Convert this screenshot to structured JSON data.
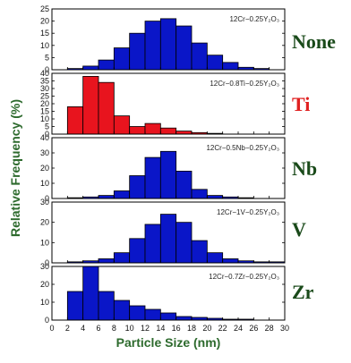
{
  "chart_data": {
    "type": "bar",
    "xlabel": "Particle Size (nm)",
    "ylabel": "Relative Frequency (%)",
    "xlim": [
      0,
      30
    ],
    "x_ticks": [
      "0",
      "2",
      "4",
      "6",
      "8",
      "10",
      "12",
      "14",
      "16",
      "18",
      "20",
      "22",
      "24",
      "26",
      "28",
      "30"
    ],
    "bin_width": 2,
    "bin_starts": [
      0,
      2,
      4,
      6,
      8,
      10,
      12,
      14,
      16,
      18,
      20,
      22,
      24,
      26,
      28
    ],
    "grid": false,
    "legend": "none",
    "panels": [
      {
        "label": "12Cr−0.25Y₂O₃",
        "side_label": "None",
        "color": "#0a16c8",
        "side_color": "#1a4a1a",
        "ylim": [
          0,
          25
        ],
        "y_ticks": [
          "0",
          "5",
          "10",
          "15",
          "20",
          "25"
        ],
        "values": [
          0,
          0.5,
          1.5,
          4,
          9,
          15,
          20,
          21,
          18,
          11,
          6,
          3,
          1,
          0.5,
          0
        ]
      },
      {
        "label": "12Cr−0.8Ti−0.25Y₂O₃",
        "side_label": "Ti",
        "color": "#e8141e",
        "side_color": "#e02020",
        "ylim": [
          0,
          40
        ],
        "y_ticks": [
          "0",
          "5",
          "10",
          "15",
          "20",
          "25",
          "30",
          "35",
          "40"
        ],
        "values": [
          0,
          18,
          38,
          34,
          12,
          5,
          7,
          4,
          2,
          1,
          0.5,
          0,
          0,
          0,
          0
        ]
      },
      {
        "label": "12Cr−0.5Nb−0.25Y₂O₃",
        "side_label": "Nb",
        "color": "#0a16c8",
        "side_color": "#1a4a1a",
        "ylim": [
          0,
          40
        ],
        "y_ticks": [
          "0",
          "10",
          "20",
          "30",
          "40"
        ],
        "values": [
          0,
          0.5,
          1,
          2,
          5,
          15,
          27,
          31,
          18,
          6,
          2,
          1,
          0.5,
          0,
          0
        ]
      },
      {
        "label": "12Cr−1V−0.25Y₂O₃",
        "side_label": "V",
        "color": "#0a16c8",
        "side_color": "#1a4a1a",
        "ylim": [
          0,
          30
        ],
        "y_ticks": [
          "0",
          "10",
          "20",
          "30"
        ],
        "values": [
          0,
          0.5,
          1,
          2,
          5,
          12,
          19,
          24,
          20,
          11,
          5,
          2,
          1,
          0.5,
          0.5
        ]
      },
      {
        "label": "12Cr−0.7Zr−0.25Y₂O₃",
        "side_label": "Zr",
        "color": "#0a16c8",
        "side_color": "#1a4a1a",
        "ylim": [
          0,
          30
        ],
        "y_ticks": [
          "0",
          "10",
          "20",
          "30"
        ],
        "values": [
          0,
          16,
          30,
          16,
          11,
          8,
          6,
          4,
          2,
          1.5,
          1,
          0.5,
          0.5,
          0,
          0
        ]
      }
    ]
  }
}
